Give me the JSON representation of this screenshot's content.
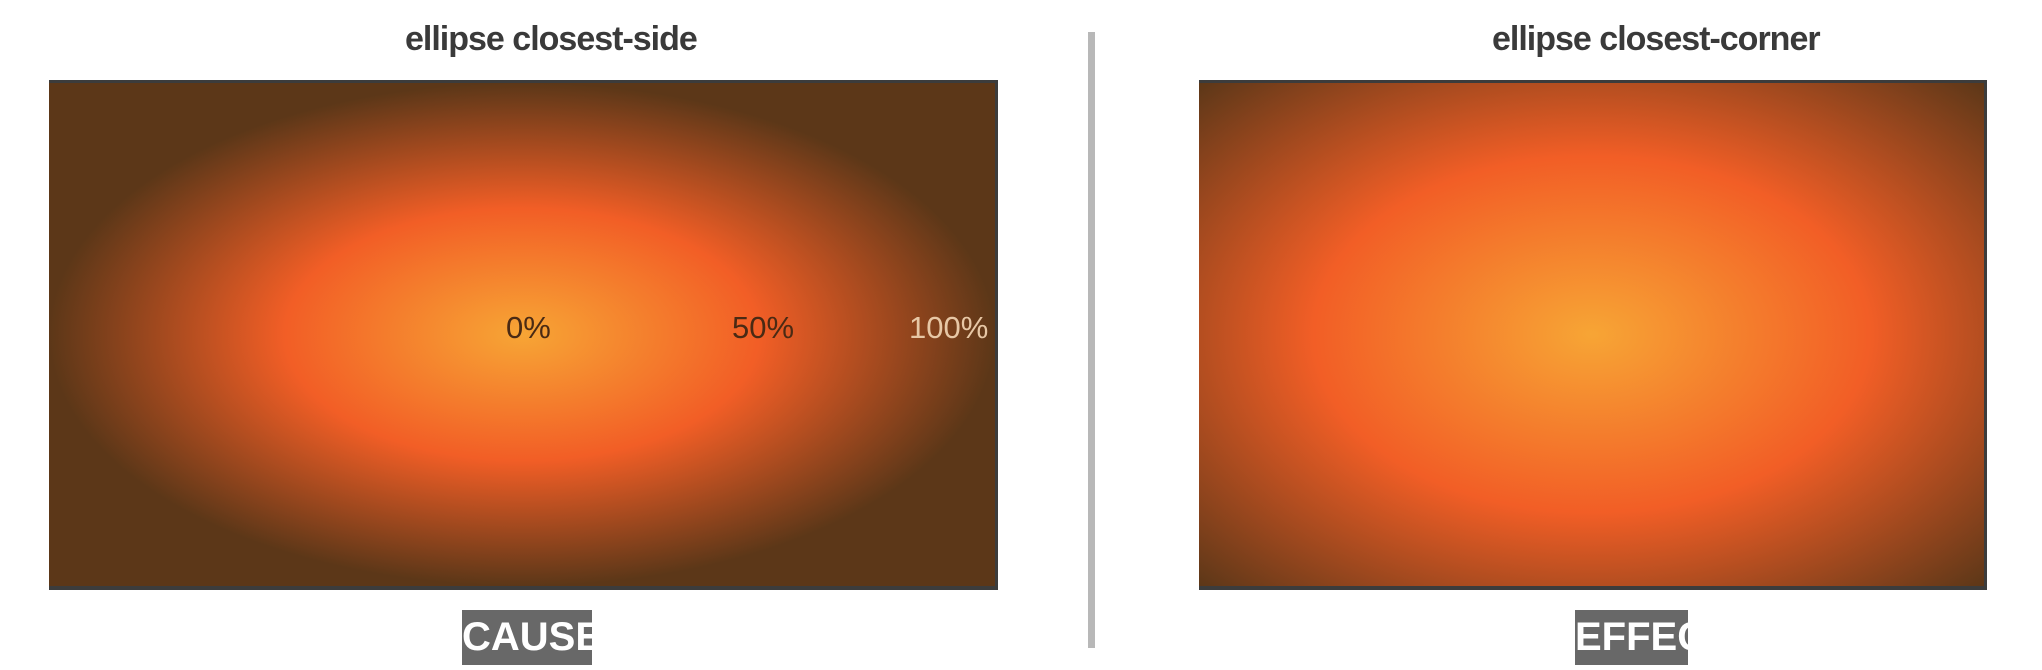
{
  "panels": [
    {
      "title": "ellipse closest-side",
      "tag": "CAUSE",
      "gradient_stops": [
        {
          "label": "0%",
          "color": "#f7a535"
        },
        {
          "label": "50%",
          "color": "#f25e26"
        },
        {
          "label": "100%",
          "color": "#5c3718"
        }
      ]
    },
    {
      "title": "ellipse closest-corner",
      "tag": "EFFECT"
    }
  ],
  "colors": {
    "center": "#f7a535",
    "mid": "#f25e26",
    "edge": "#5c3718",
    "border": "#3c3c3c",
    "divider": "#b8b8b8",
    "tag_background": "#686868"
  }
}
